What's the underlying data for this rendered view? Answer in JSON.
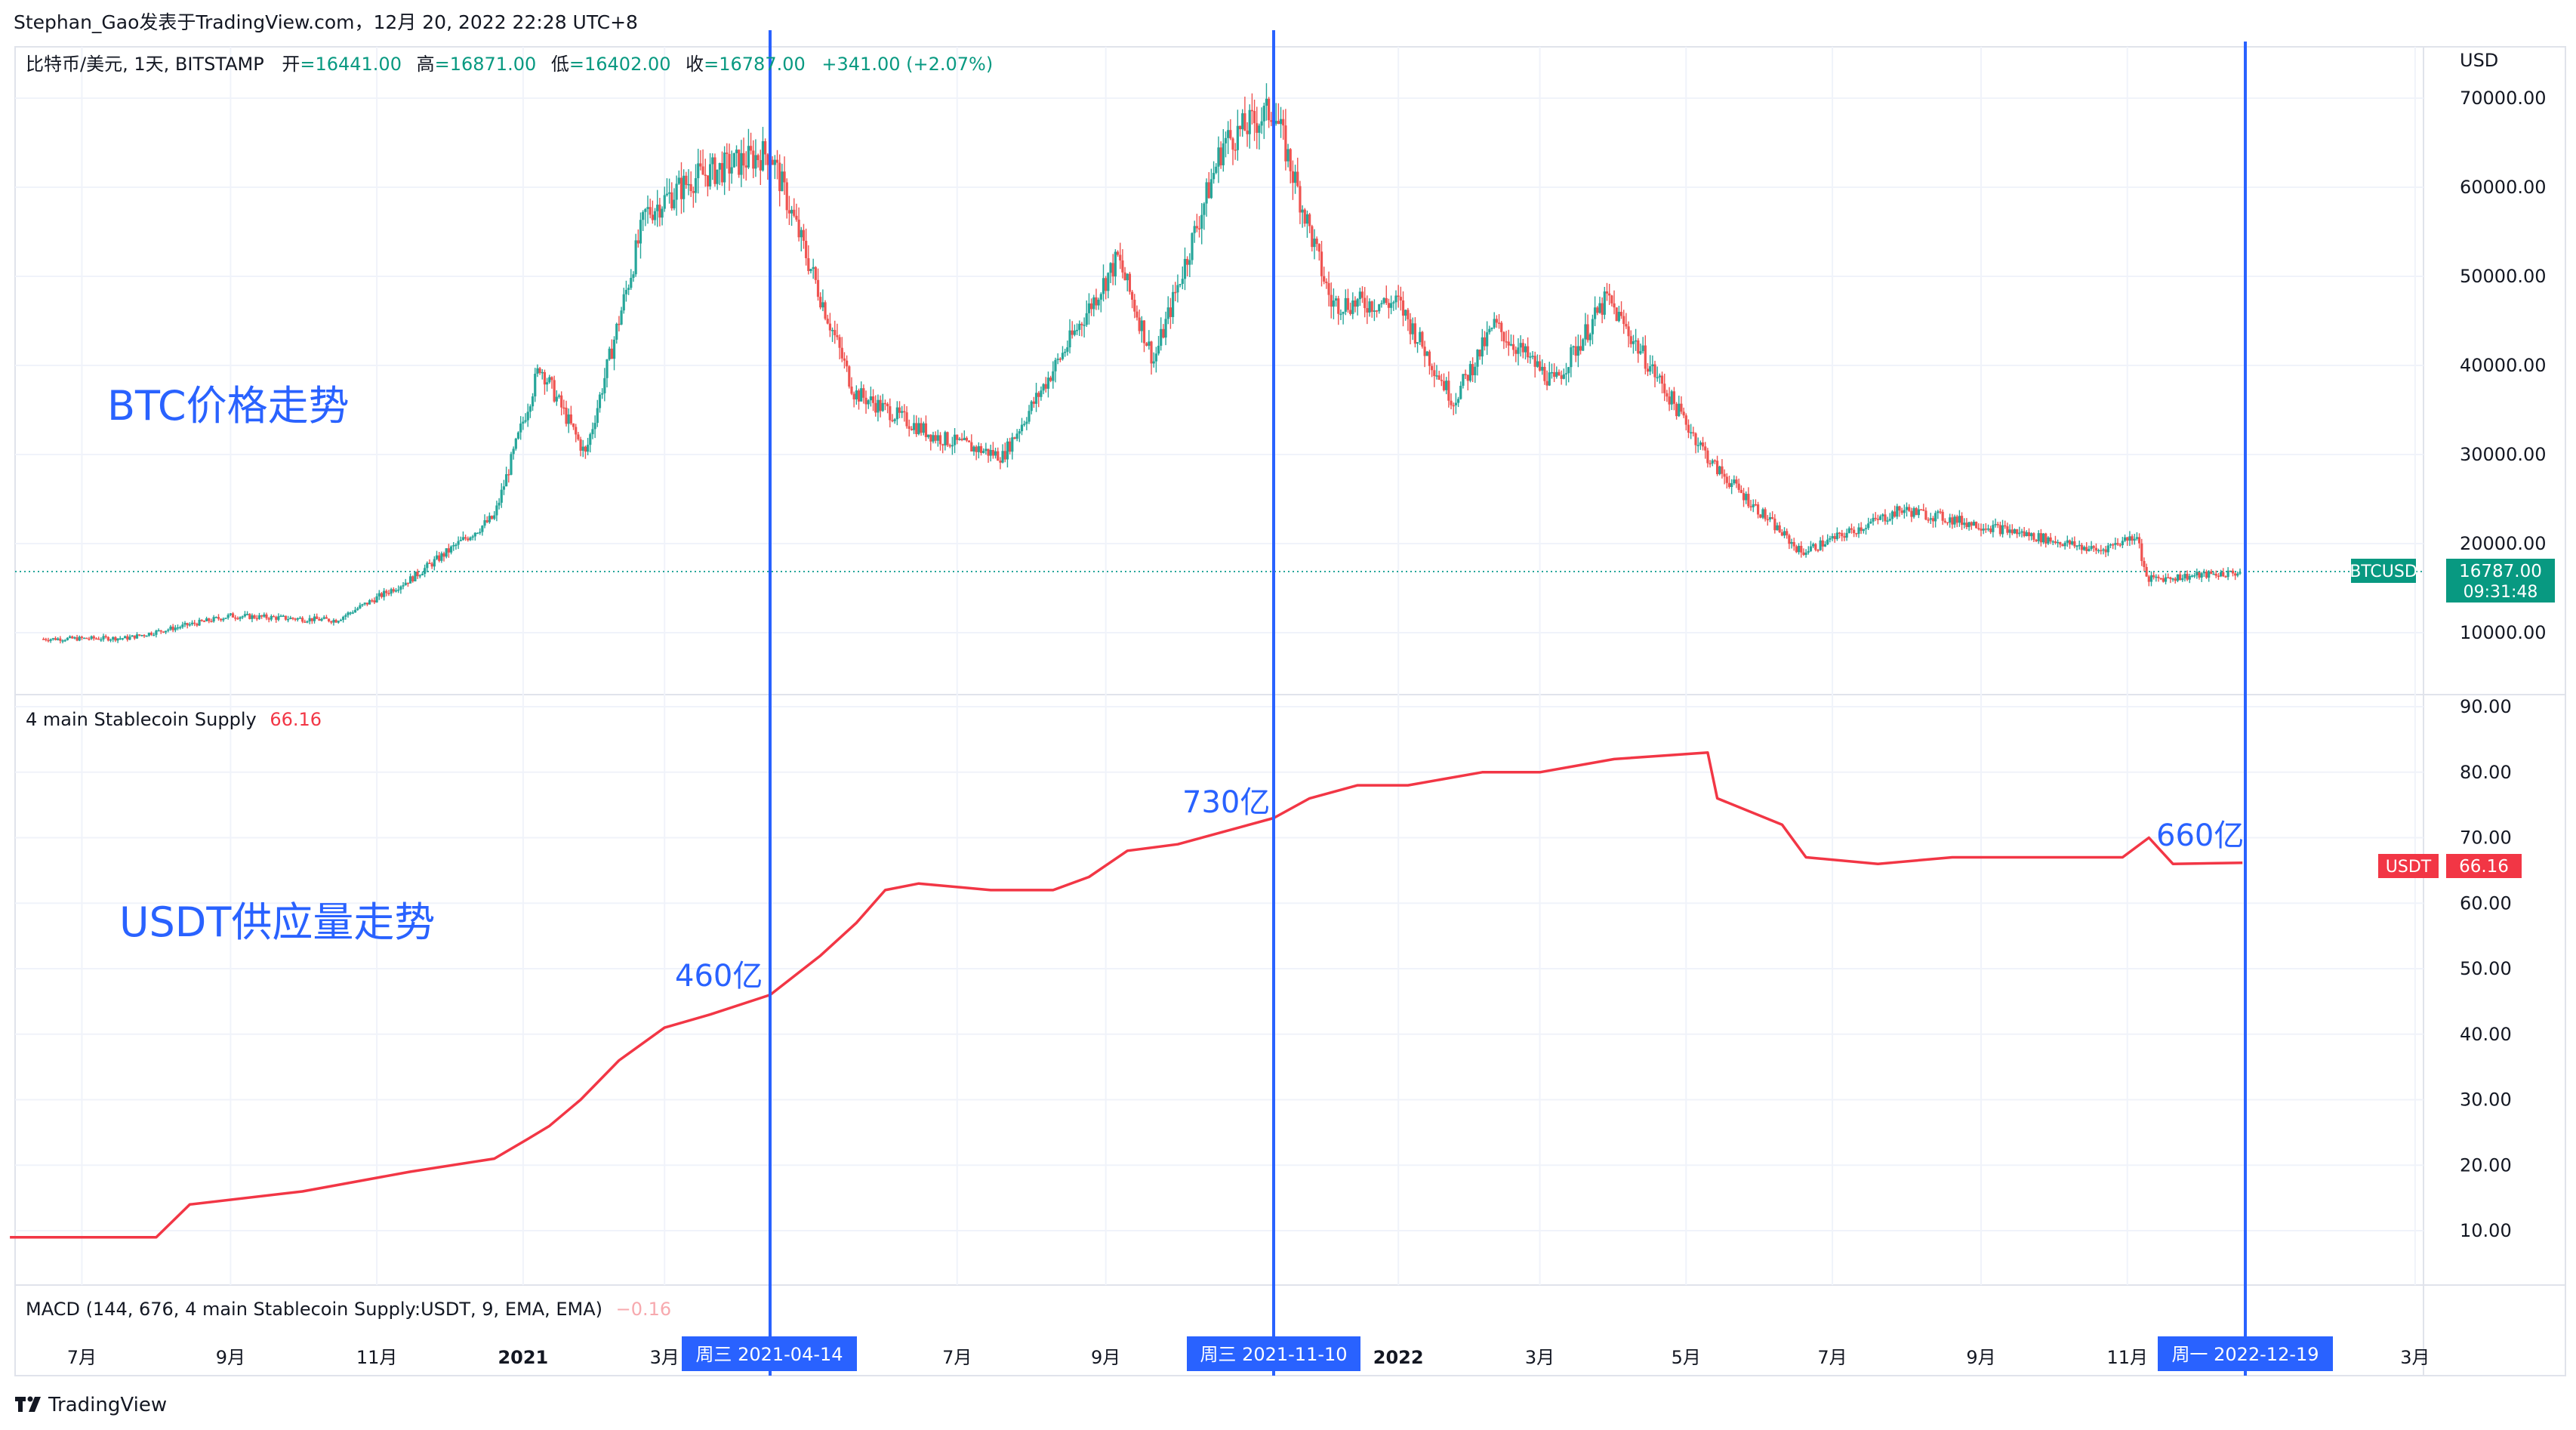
{
  "header": {
    "publish_info": "Stephan_Gao发表于TradingView.com，12月 20, 2022 22:28 UTC+8"
  },
  "price_legend": {
    "symbol": "比特币/美元, 1天, BITSTAMP",
    "open_label": "开",
    "open_value": "=16441.00",
    "high_label": "高",
    "high_value": "=16871.00",
    "low_label": "低",
    "low_value": "=16402.00",
    "close_label": "收",
    "close_value": "=16787.00",
    "change": "+341.00 (+2.07%)"
  },
  "annotations": {
    "btc_title": "BTC价格走势",
    "usdt_title": "USDT供应量走势",
    "v460": "460亿",
    "v730": "730亿",
    "v660": "660亿"
  },
  "price_axis": {
    "currency": "USD",
    "ticks": [
      "70000.00",
      "60000.00",
      "50000.00",
      "40000.00",
      "30000.00",
      "20000.00",
      "10000.00"
    ],
    "badge_symbol": "BTCUSD",
    "badge_price": "16787.00",
    "badge_time": "09:31:48"
  },
  "stable_pane": {
    "legend_name": "4 main Stablecoin Supply",
    "legend_value": "66.16",
    "ticks": [
      "90.00",
      "80.00",
      "70.00",
      "60.00",
      "50.00",
      "40.00",
      "30.00",
      "20.00",
      "10.00"
    ],
    "badge_symbol": "USDT",
    "badge_value": "66.16"
  },
  "macd_pane": {
    "legend": "MACD (144, 676, 4 main Stablecoin Supply:USDT, 9, EMA, EMA)",
    "value": "−0.16"
  },
  "time_axis": {
    "labels": [
      {
        "text": "7月",
        "bold": false
      },
      {
        "text": "9月",
        "bold": false
      },
      {
        "text": "11月",
        "bold": false
      },
      {
        "text": "2021",
        "bold": true
      },
      {
        "text": "3月",
        "bold": false
      },
      {
        "text": "7月",
        "bold": false
      },
      {
        "text": "9月",
        "bold": false
      },
      {
        "text": "2022",
        "bold": true
      },
      {
        "text": "3月",
        "bold": false
      },
      {
        "text": "5月",
        "bold": false
      },
      {
        "text": "7月",
        "bold": false
      },
      {
        "text": "9月",
        "bold": false
      },
      {
        "text": "11月",
        "bold": false
      },
      {
        "text": "3月",
        "bold": false
      }
    ],
    "markers": [
      "周三  2021-04-14",
      "周三  2021-11-10",
      "周一  2022-12-19"
    ]
  },
  "footer": {
    "brand": "TradingView"
  },
  "colors": {
    "up": "#26a69a",
    "down": "#ef5350",
    "usdt_line": "#f23645",
    "vline": "#2962ff",
    "annot": "#2962ff",
    "badge_green": "#089981",
    "badge_red": "#f23645",
    "marker_bg": "#2962ff"
  },
  "chart_data": [
    {
      "type": "line",
      "title": "比特币/美元, 1天, BITSTAMP",
      "series": [
        {
          "name": "BTCUSD",
          "x": [
            "2020-06-15",
            "2020-07-20",
            "2020-09-01",
            "2020-10-15",
            "2020-11-15",
            "2020-12-20",
            "2021-01-08",
            "2021-01-27",
            "2021-02-21",
            "2021-03-13",
            "2021-04-14",
            "2021-05-19",
            "2021-06-22",
            "2021-07-20",
            "2021-09-06",
            "2021-09-21",
            "2021-10-20",
            "2021-11-10",
            "2021-12-04",
            "2022-01-01",
            "2022-01-24",
            "2022-02-10",
            "2022-03-07",
            "2022-03-29",
            "2022-05-12",
            "2022-06-18",
            "2022-07-30",
            "2022-09-12",
            "2022-10-20",
            "2022-11-05",
            "2022-11-09",
            "2022-12-19"
          ],
          "values": [
            9300,
            9400,
            11900,
            11400,
            16000,
            23000,
            40000,
            30000,
            57000,
            61000,
            64000,
            37000,
            32000,
            29800,
            52000,
            40500,
            65000,
            68800,
            47000,
            47000,
            36000,
            44500,
            38000,
            47500,
            28900,
            19000,
            23800,
            21500,
            19200,
            21000,
            16000,
            16787
          ]
        }
      ],
      "ylabel": "USD",
      "ylim": [
        0,
        75000
      ]
    },
    {
      "type": "line",
      "title": "4 main Stablecoin Supply",
      "series": [
        {
          "name": "USDT",
          "x": [
            "2020-06-01",
            "2020-08-01",
            "2020-08-15",
            "2020-10-01",
            "2020-11-15",
            "2020-12-20",
            "2021-01-03",
            "2021-01-12",
            "2021-01-25",
            "2021-02-10",
            "2021-03-01",
            "2021-03-20",
            "2021-04-14",
            "2021-05-05",
            "2021-05-20",
            "2021-06-01",
            "2021-06-15",
            "2021-07-15",
            "2021-08-10",
            "2021-08-25",
            "2021-09-10",
            "2021-10-01",
            "2021-11-10",
            "2021-11-25",
            "2021-12-15",
            "2022-01-05",
            "2022-02-05",
            "2022-03-01",
            "2022-04-01",
            "2022-05-10",
            "2022-05-14",
            "2022-06-10",
            "2022-06-20",
            "2022-07-20",
            "2022-08-20",
            "2022-10-30",
            "2022-11-10",
            "2022-11-20",
            "2022-12-19"
          ],
          "values": [
            9,
            9,
            14,
            16,
            19,
            21,
            24,
            26,
            30,
            36,
            41,
            43,
            46,
            52,
            57,
            62,
            63,
            62,
            62,
            64,
            68,
            69,
            73,
            76,
            78,
            78,
            80,
            80,
            82,
            83,
            76,
            72,
            67,
            66,
            67,
            67,
            70,
            66,
            66.16
          ]
        }
      ],
      "ylim": [
        0,
        90
      ]
    }
  ]
}
